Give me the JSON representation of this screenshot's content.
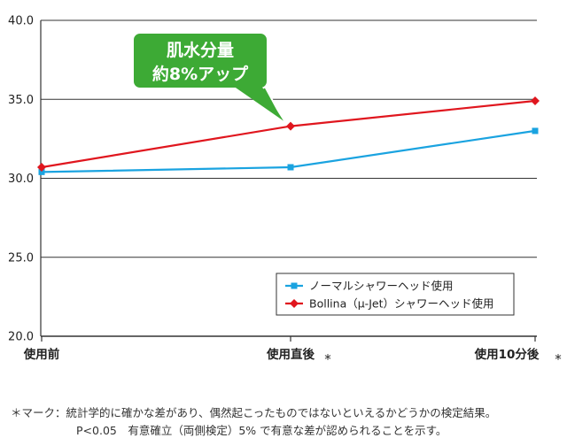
{
  "chart_data": {
    "type": "line",
    "categories": [
      "使用前",
      "使用直後",
      "使用10分後"
    ],
    "significance_marks": [
      "",
      "*",
      "*"
    ],
    "ylim": [
      20.0,
      40.0
    ],
    "yticks": [
      "40.0",
      "35.0",
      "30.0",
      "25.0",
      "20.0"
    ],
    "ytick_values": [
      40,
      35,
      30,
      25,
      20
    ],
    "grid": "horizontal",
    "legend_position": "bottom-right",
    "series": [
      {
        "name": "ノーマルシャワーヘッド使用",
        "values": [
          30.4,
          30.7,
          33.0
        ],
        "color": "#1aa3e0",
        "marker": "square"
      },
      {
        "name": "Bollina（μ-Jet）シャワーヘッド使用",
        "values": [
          30.7,
          33.3,
          34.9
        ],
        "color": "#e0161e",
        "marker": "diamond"
      }
    ],
    "callout": {
      "line1": "肌水分量",
      "line2": "約8%アップ",
      "color": "#3daa35"
    }
  },
  "footnote": {
    "line1": "＊マーク：統計学的に確かな差があり、偶然起こったものではないといえるかどうかの検定結果。",
    "line2": "P<0.05　有意確立（両側検定）5% で有意な差が認められることを示す。"
  }
}
